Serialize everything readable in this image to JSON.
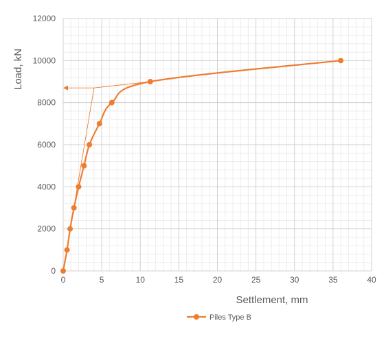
{
  "chart_data": {
    "type": "line",
    "title": "",
    "xlabel": "Settlement, mm",
    "ylabel": "Load, kN",
    "xlim": [
      0,
      40
    ],
    "ylim": [
      0,
      12000
    ],
    "x_ticks": [
      0,
      5,
      10,
      15,
      20,
      25,
      30,
      35,
      40
    ],
    "y_ticks": [
      0,
      2000,
      4000,
      6000,
      8000,
      10000,
      12000
    ],
    "x_tick_labels": [
      "0",
      "5",
      "10",
      "15",
      "20",
      "25",
      "30",
      "35",
      "40"
    ],
    "y_tick_labels": [
      "0",
      "2000",
      "4000",
      "6000",
      "8000",
      "10000",
      "12000"
    ],
    "x_minor_step": 1,
    "y_minor_step": 400,
    "grid": true,
    "legend_position": "bottom-center",
    "series": [
      {
        "name": "Piles Type B",
        "color": "#ED7D31",
        "smooth": true,
        "points": [
          [
            0,
            0
          ],
          [
            0.5,
            1000
          ],
          [
            0.9,
            2000
          ],
          [
            1.4,
            3000
          ],
          [
            2.0,
            4000
          ],
          [
            2.7,
            5000
          ],
          [
            3.4,
            6000
          ],
          [
            4.7,
            7000
          ],
          [
            6.3,
            8000
          ],
          [
            11.3,
            9000
          ],
          [
            36.0,
            10000
          ]
        ]
      }
    ],
    "annotations": {
      "color": "#ED7D31",
      "tangent_lines": [
        {
          "from": [
            0,
            0
          ],
          "to": [
            4.0,
            8700
          ]
        },
        {
          "from": [
            4.0,
            8700
          ],
          "to": [
            11.3,
            9000
          ]
        }
      ],
      "arrow": {
        "from": [
          4.0,
          8700
        ],
        "to": [
          0,
          8700
        ]
      }
    }
  }
}
